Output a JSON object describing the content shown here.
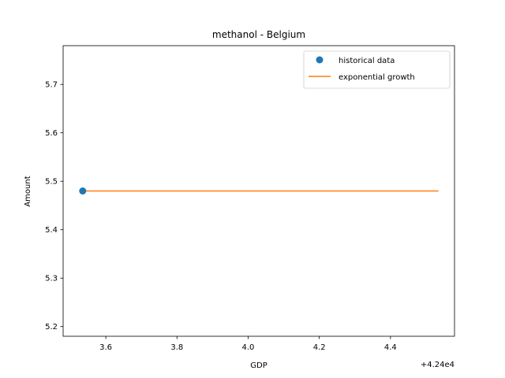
{
  "chart_data": {
    "type": "scatter",
    "title": "methanol - Belgium",
    "xlabel": "GDP",
    "ylabel": "Amount",
    "x_offset_label": "+4.24e4",
    "x_offset": 42400,
    "xlim": [
      42403.48,
      42404.58
    ],
    "ylim": [
      5.18,
      5.78
    ],
    "x_ticks": [
      42403.6,
      42403.8,
      42404.0,
      42404.2,
      42404.4
    ],
    "x_tick_labels": [
      "3.6",
      "3.8",
      "4.0",
      "4.2",
      "4.4"
    ],
    "y_ticks": [
      5.2,
      5.3,
      5.4,
      5.5,
      5.6,
      5.7
    ],
    "y_tick_labels": [
      "5.2",
      "5.3",
      "5.4",
      "5.5",
      "5.6",
      "5.7"
    ],
    "grid": false,
    "legend_position": "top-right",
    "series": [
      {
        "name": "historical data",
        "kind": "scatter",
        "color": "#1f77b4",
        "points": [
          {
            "x": 42403.535,
            "y": 5.48
          }
        ]
      },
      {
        "name": "exponential growth",
        "kind": "line",
        "color": "#ff7f0e",
        "points": [
          {
            "x": 42403.535,
            "y": 5.48
          },
          {
            "x": 42404.535,
            "y": 5.48
          }
        ]
      }
    ]
  }
}
